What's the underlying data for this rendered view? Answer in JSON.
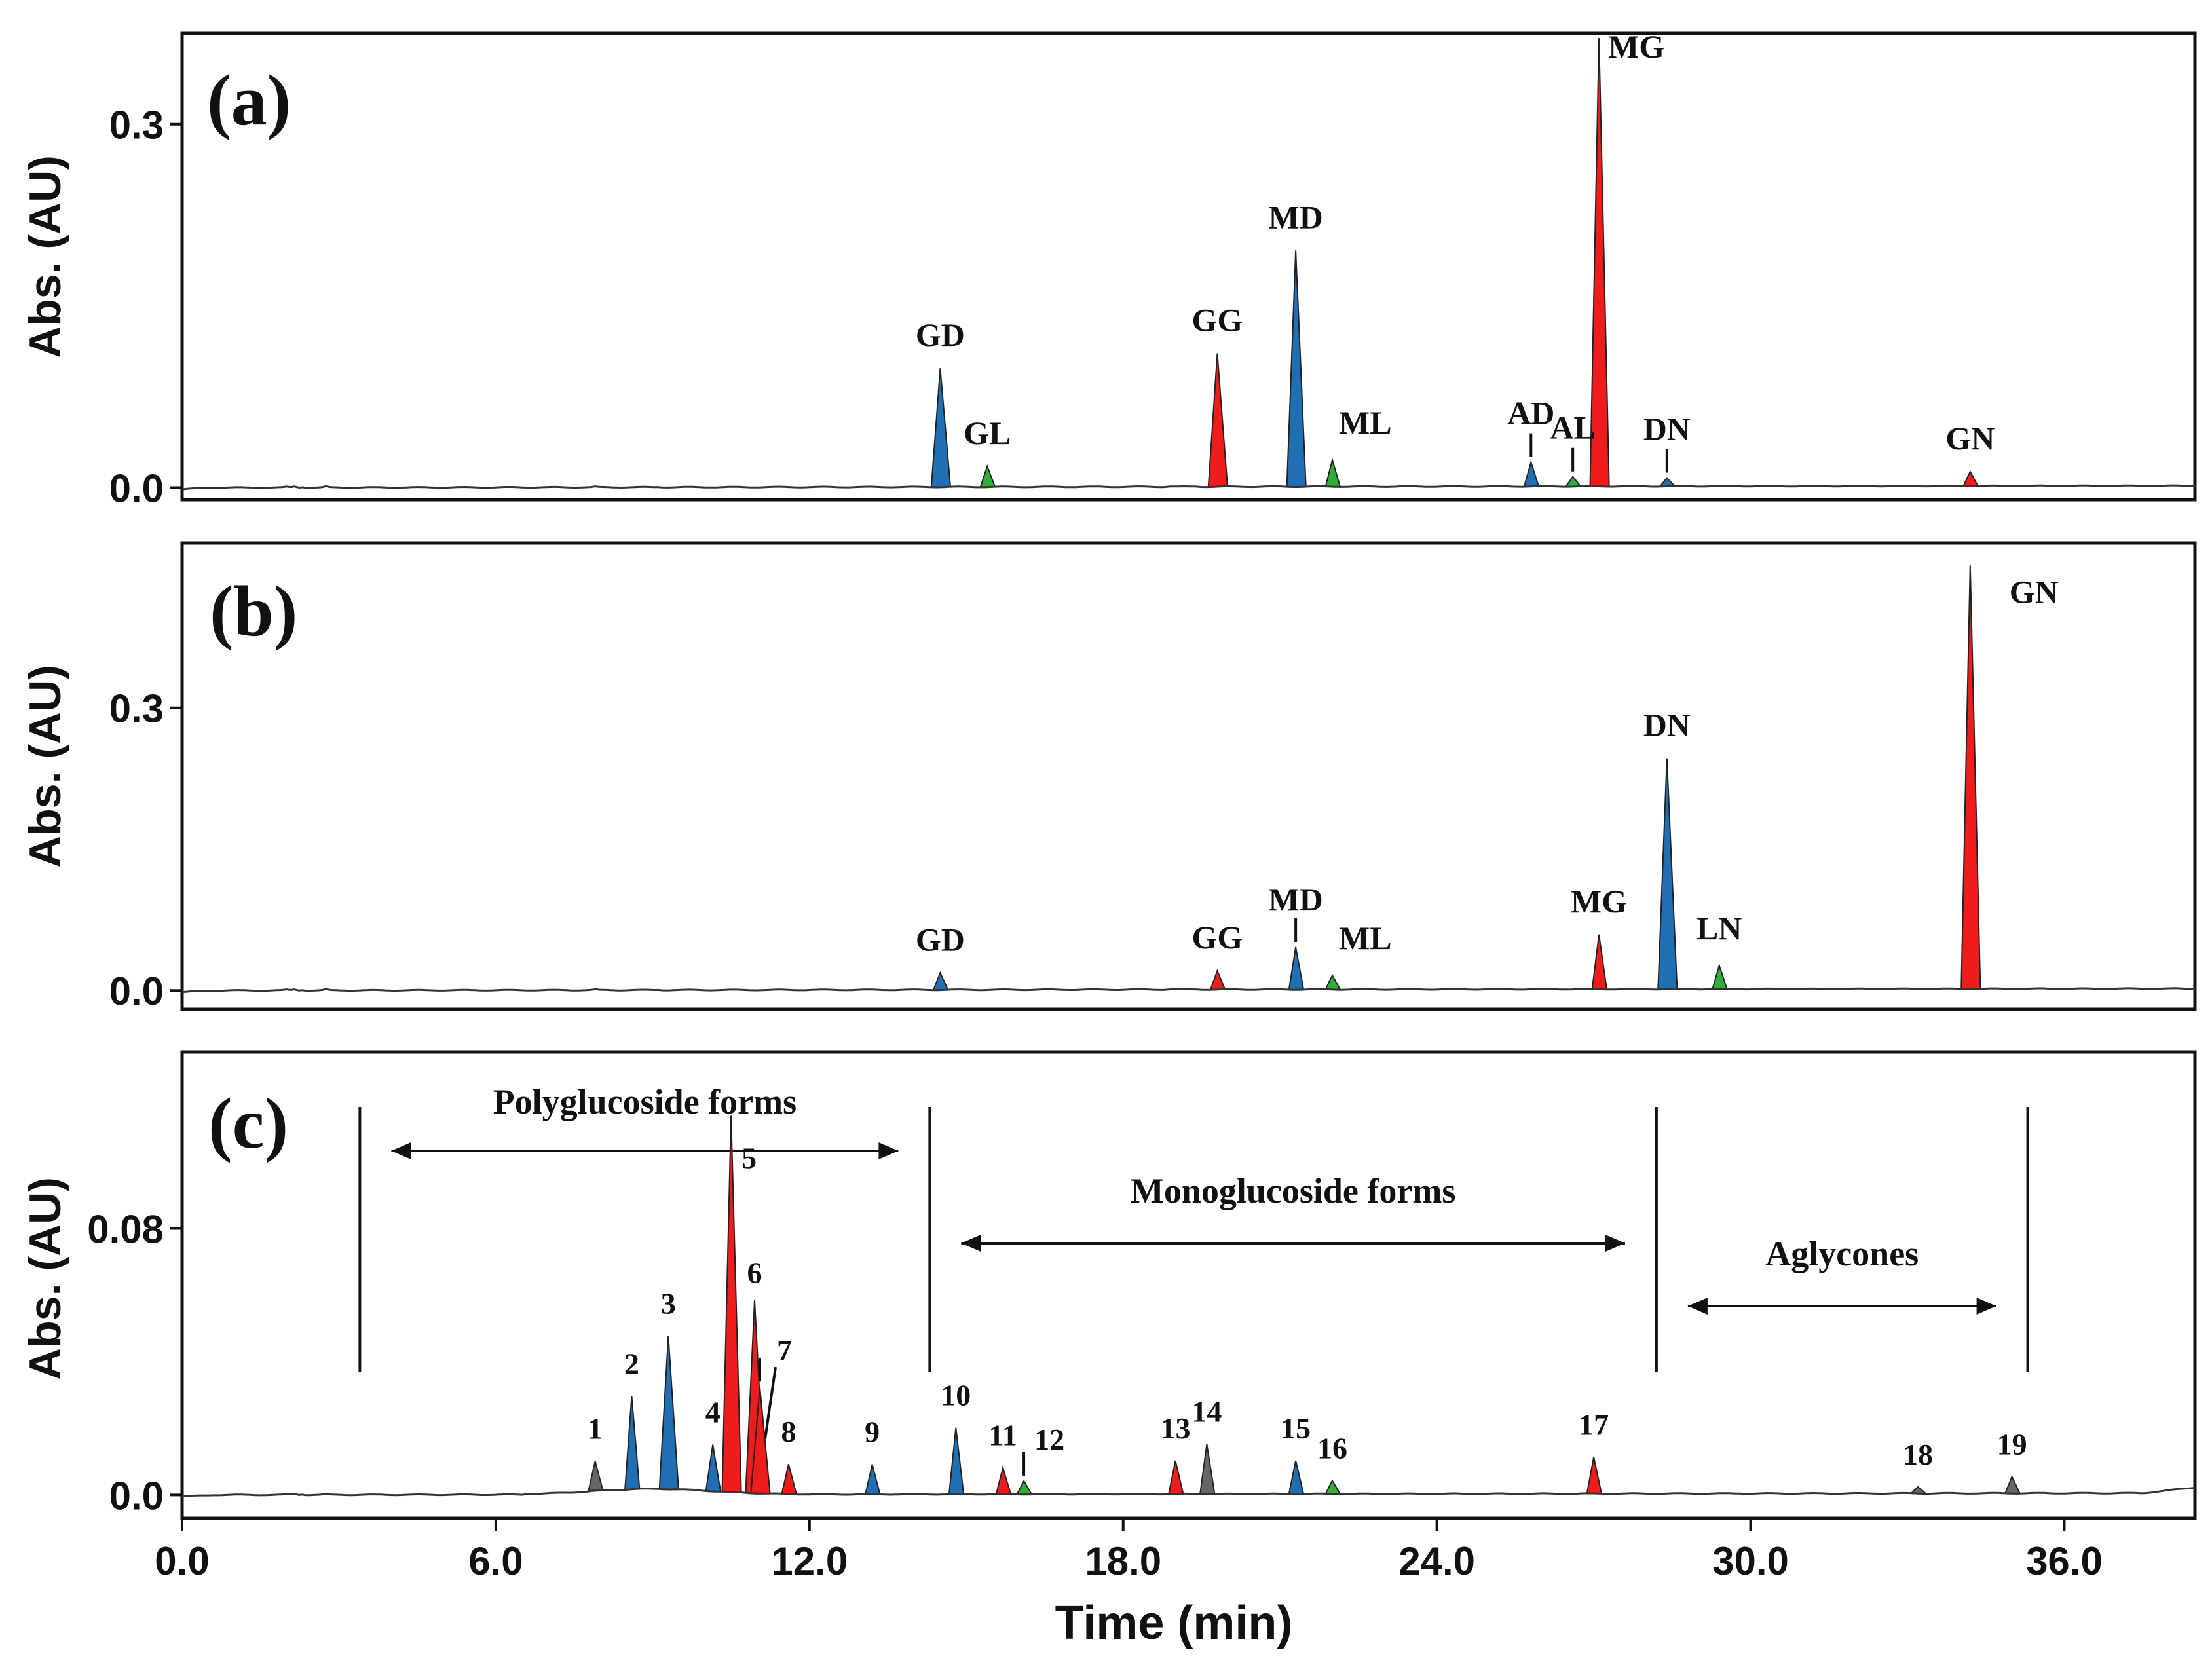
{
  "colors": {
    "blue": "#1f6fb2",
    "red": "#ee1c1c",
    "green": "#2fae3a",
    "gray": "#666666",
    "baseline": "#333333"
  },
  "chart_data": {
    "type": "line",
    "title": "",
    "xlabel": "Time (min)",
    "ylabel": "Abs. (AU)",
    "xlim": [
      0,
      38.5
    ],
    "x_ticks": [
      0,
      6,
      12,
      18,
      24,
      30,
      36
    ],
    "x_tick_labels": [
      "0.0",
      "6.0",
      "12.0",
      "18.0",
      "24.0",
      "30.0",
      "36.0"
    ],
    "panels": [
      {
        "id": "a",
        "label": "(a)",
        "ylim": [
          -0.01,
          0.375
        ],
        "y_ticks": [
          0,
          0.3
        ],
        "y_tick_labels": [
          "0.0",
          "0.3"
        ],
        "peaks": [
          {
            "name": "GD",
            "time": 14.5,
            "height": 0.098,
            "color": "blue"
          },
          {
            "name": "GL",
            "time": 15.4,
            "height": 0.017,
            "color": "green"
          },
          {
            "name": "GG",
            "time": 19.8,
            "height": 0.11,
            "color": "red"
          },
          {
            "name": "MD",
            "time": 21.3,
            "height": 0.195,
            "color": "blue"
          },
          {
            "name": "ML",
            "time": 22.0,
            "height": 0.022,
            "color": "green"
          },
          {
            "name": "AD",
            "time": 25.8,
            "height": 0.02,
            "color": "blue",
            "marker": true
          },
          {
            "name": "AL",
            "time": 26.6,
            "height": 0.008,
            "color": "green",
            "marker": true
          },
          {
            "name": "MG",
            "time": 27.1,
            "height": 0.37,
            "color": "red"
          },
          {
            "name": "DN",
            "time": 28.4,
            "height": 0.007,
            "color": "blue",
            "marker": true
          },
          {
            "name": "GN",
            "time": 34.2,
            "height": 0.012,
            "color": "red"
          }
        ]
      },
      {
        "id": "b",
        "label": "(b)",
        "ylim": [
          -0.02,
          0.475
        ],
        "y_ticks": [
          0,
          0.3
        ],
        "y_tick_labels": [
          "0.0",
          "0.3"
        ],
        "peaks": [
          {
            "name": "GD",
            "time": 14.5,
            "height": 0.018,
            "color": "blue"
          },
          {
            "name": "GG",
            "time": 19.8,
            "height": 0.02,
            "color": "red"
          },
          {
            "name": "MD",
            "time": 21.3,
            "height": 0.045,
            "color": "blue",
            "marker": true
          },
          {
            "name": "ML",
            "time": 22.0,
            "height": 0.015,
            "color": "green"
          },
          {
            "name": "MG",
            "time": 27.1,
            "height": 0.058,
            "color": "red"
          },
          {
            "name": "DN",
            "time": 28.4,
            "height": 0.245,
            "color": "blue"
          },
          {
            "name": "LN",
            "time": 29.4,
            "height": 0.025,
            "color": "green"
          },
          {
            "name": "GN",
            "time": 34.2,
            "height": 0.45,
            "color": "red"
          }
        ]
      },
      {
        "id": "c",
        "label": "(c)",
        "ylim": [
          -0.007,
          0.133
        ],
        "y_ticks": [
          0,
          0.08
        ],
        "y_tick_labels": [
          "0.0",
          "0.08"
        ],
        "peaks": [
          {
            "name": "1",
            "time": 7.9,
            "height": 0.009,
            "color": "gray"
          },
          {
            "name": "2",
            "time": 8.6,
            "height": 0.028,
            "color": "blue"
          },
          {
            "name": "3",
            "time": 9.3,
            "height": 0.046,
            "color": "blue"
          },
          {
            "name": "4",
            "time": 10.15,
            "height": 0.014,
            "color": "blue"
          },
          {
            "name": "5",
            "time": 10.5,
            "height": 0.113,
            "color": "red"
          },
          {
            "name": "6",
            "time": 10.95,
            "height": 0.058,
            "color": "red"
          },
          {
            "name": "7",
            "time": 11.05,
            "height": 0.032,
            "color": "red",
            "marker": true
          },
          {
            "name": "8",
            "time": 11.6,
            "height": 0.009,
            "color": "red"
          },
          {
            "name": "9",
            "time": 13.2,
            "height": 0.009,
            "color": "blue"
          },
          {
            "name": "10",
            "time": 14.8,
            "height": 0.02,
            "color": "blue"
          },
          {
            "name": "11",
            "time": 15.7,
            "height": 0.008,
            "color": "red"
          },
          {
            "name": "12",
            "time": 16.1,
            "height": 0.004,
            "color": "green",
            "marker": true
          },
          {
            "name": "13",
            "time": 19.0,
            "height": 0.01,
            "color": "red"
          },
          {
            "name": "14",
            "time": 19.6,
            "height": 0.015,
            "color": "gray"
          },
          {
            "name": "15",
            "time": 21.3,
            "height": 0.01,
            "color": "blue"
          },
          {
            "name": "16",
            "time": 22.0,
            "height": 0.004,
            "color": "green"
          },
          {
            "name": "17",
            "time": 27.0,
            "height": 0.011,
            "color": "red"
          },
          {
            "name": "18",
            "time": 33.2,
            "height": 0.002,
            "color": "gray"
          },
          {
            "name": "19",
            "time": 35.0,
            "height": 0.005,
            "color": "gray"
          }
        ],
        "regions": [
          {
            "name": "Polyglucoside forms",
            "start": 3.4,
            "end": 14.3
          },
          {
            "name": "Monoglucoside forms",
            "start": 14.3,
            "end": 28.2
          },
          {
            "name": "Aglycones",
            "start": 28.2,
            "end": 35.3
          }
        ]
      }
    ]
  }
}
